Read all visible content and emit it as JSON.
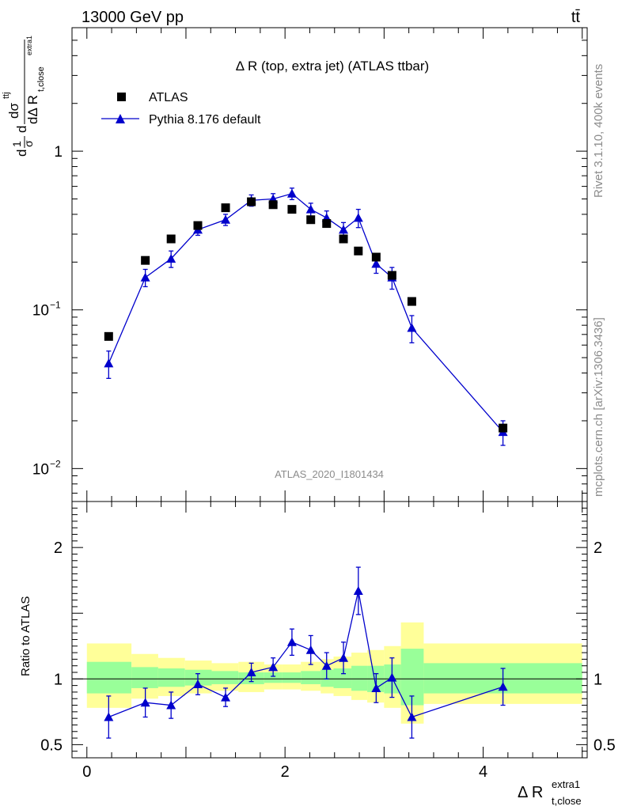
{
  "header": {
    "energy": "13000 GeV pp",
    "process": "tt̄"
  },
  "side": {
    "rivet": "Rivet 3.1.10,  400k events",
    "source": "mcplots.cern.ch [arXiv:1306.3436]"
  },
  "chart_data": {
    "type": "scatter",
    "title": "Δ R (top, extra jet) (ATLAS ttbar)",
    "analysis": "ATLAS_2020_I1801434",
    "xlabel": "Δ R",
    "xlabel_sub": "t,close",
    "xlabel_sup": "extra1",
    "ylabel_top": "dσ",
    "ylabel_top_sup": "ttj",
    "ylabel_bottom": "dΔ R",
    "ylabel_bottom_sub": "t,close",
    "ylabel_bottom_sup": "extra1",
    "ylabel_prefix_num": "1",
    "ylabel_prefix_den": "σ",
    "ylabel_d": "d",
    "xlim": [
      -0.15,
      5.05
    ],
    "ylim_main": [
      0.0062,
      6.0
    ],
    "yscale_main": "log",
    "ylim_ratio": [
      0.4,
      2.35
    ],
    "ratio_ylabel": "Ratio to ATLAS",
    "x_ticks": [
      {
        "v": 0,
        "label": "0"
      },
      {
        "v": 2,
        "label": "2"
      },
      {
        "v": 4,
        "label": "4"
      }
    ],
    "main_y_ticks": [
      {
        "v": 1,
        "base": "1",
        "exp": ""
      },
      {
        "v": 0.1,
        "base": "10",
        "exp": "−1"
      },
      {
        "v": 0.01,
        "base": "10",
        "exp": "−2"
      }
    ],
    "ratio_y_ticks": [
      {
        "v": 2,
        "label": "2"
      },
      {
        "v": 1,
        "label": "1"
      },
      {
        "v": 0.5,
        "label": "0.5"
      }
    ],
    "legend": {
      "placement": "top-left",
      "data_label": "ATLAS",
      "mc_label": "Pythia 8.176 default"
    },
    "series": [
      {
        "name": "ATLAS",
        "color": "#000000",
        "marker": "square",
        "x": [
          0.22,
          0.59,
          0.85,
          1.12,
          1.4,
          1.66,
          1.88,
          2.07,
          2.26,
          2.42,
          2.59,
          2.74,
          2.92,
          3.08,
          3.28,
          4.2
        ],
        "y": [
          0.068,
          0.205,
          0.28,
          0.34,
          0.44,
          0.48,
          0.46,
          0.43,
          0.37,
          0.35,
          0.28,
          0.235,
          0.215,
          0.165,
          0.113,
          0.018
        ]
      },
      {
        "name": "Pythia 8.176 default",
        "color": "#0000cc",
        "marker": "triangle",
        "x": [
          0.22,
          0.59,
          0.85,
          1.12,
          1.4,
          1.66,
          1.88,
          2.07,
          2.26,
          2.42,
          2.59,
          2.74,
          2.92,
          3.08,
          3.28,
          4.2
        ],
        "y": [
          0.046,
          0.16,
          0.21,
          0.32,
          0.37,
          0.49,
          0.5,
          0.54,
          0.43,
          0.38,
          0.32,
          0.38,
          0.195,
          0.16,
          0.077,
          0.017
        ],
        "err_low": [
          0.009,
          0.02,
          0.025,
          0.025,
          0.03,
          0.04,
          0.04,
          0.045,
          0.04,
          0.04,
          0.035,
          0.05,
          0.025,
          0.025,
          0.015,
          0.003
        ],
        "err_high": [
          0.009,
          0.02,
          0.025,
          0.025,
          0.03,
          0.04,
          0.04,
          0.045,
          0.04,
          0.04,
          0.035,
          0.05,
          0.025,
          0.025,
          0.015,
          0.003
        ],
        "ratio": [
          0.71,
          0.82,
          0.8,
          0.96,
          0.86,
          1.05,
          1.09,
          1.28,
          1.22,
          1.1,
          1.16,
          1.67,
          0.93,
          1.01,
          0.71,
          0.94
        ],
        "ratio_err": [
          0.16,
          0.11,
          0.1,
          0.08,
          0.07,
          0.07,
          0.07,
          0.1,
          0.11,
          0.1,
          0.12,
          0.18,
          0.11,
          0.15,
          0.16,
          0.14
        ]
      }
    ],
    "uncertainty_bands": {
      "bins": [
        0.0,
        0.45,
        0.72,
        0.99,
        1.26,
        1.53,
        1.79,
        1.97,
        2.16,
        2.36,
        2.49,
        2.67,
        2.83,
        3.0,
        3.17,
        3.4,
        5.0
      ],
      "inner_lo": [
        0.89,
        0.93,
        0.94,
        0.95,
        0.96,
        0.96,
        0.97,
        0.97,
        0.96,
        0.94,
        0.93,
        0.91,
        0.9,
        0.89,
        0.8,
        0.89
      ],
      "inner_hi": [
        1.13,
        1.09,
        1.08,
        1.07,
        1.06,
        1.05,
        1.05,
        1.05,
        1.06,
        1.07,
        1.08,
        1.1,
        1.1,
        1.11,
        1.23,
        1.12
      ],
      "outer_lo": [
        0.78,
        0.85,
        0.87,
        0.89,
        0.91,
        0.9,
        0.92,
        0.92,
        0.91,
        0.89,
        0.87,
        0.84,
        0.82,
        0.78,
        0.66,
        0.81
      ],
      "outer_hi": [
        1.27,
        1.19,
        1.16,
        1.14,
        1.12,
        1.13,
        1.11,
        1.11,
        1.13,
        1.15,
        1.17,
        1.2,
        1.22,
        1.25,
        1.43,
        1.27
      ],
      "inner_color": "#99ff99",
      "outer_color": "#ffff99"
    }
  }
}
